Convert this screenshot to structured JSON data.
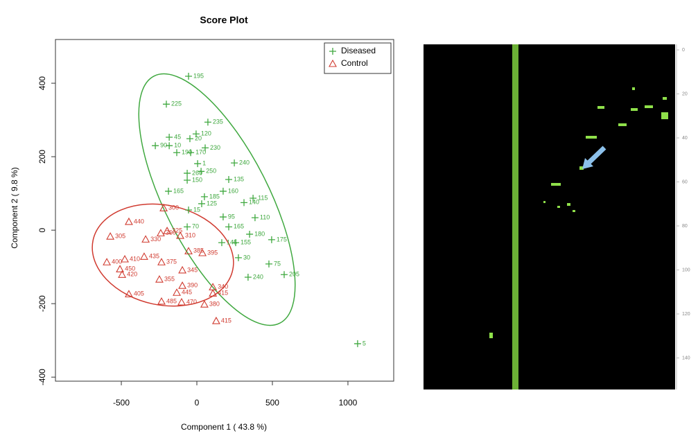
{
  "chart_data": {
    "type": "scatter",
    "title": "Score Plot",
    "xlabel": "Component 1 ( 43.8 %)",
    "ylabel": "Component 2 ( 9.8 %)",
    "xlim": [
      -936,
      1303
    ],
    "ylim": [
      -411,
      519
    ],
    "xticks": [
      -500,
      0,
      500,
      1000
    ],
    "yticks": [
      -400,
      -200,
      0,
      200,
      400
    ],
    "grid": false,
    "legend": "top-right",
    "series": [
      {
        "name": "Diseased",
        "color": "#3fa83f",
        "marker": "plus",
        "x": [
          -55,
          -202,
          73,
          -5,
          -183,
          -46,
          -275,
          -183,
          55,
          -133,
          -41,
          5,
          248,
          -64,
          28,
          -64,
          211,
          -188,
          174,
          312,
          32,
          50,
          -55,
          372,
          174,
          385,
          -64,
          211,
          349,
          495,
          165,
          257,
          275,
          477,
          578,
          339,
          1064
        ],
        "y": [
          419,
          343,
          294,
          262,
          253,
          249,
          230,
          230,
          224,
          211,
          211,
          181,
          183,
          155,
          160,
          136,
          138,
          106,
          106,
          75,
          72,
          91,
          55,
          87,
          36,
          34,
          9,
          9,
          -11,
          -26,
          -34,
          -34,
          -75,
          -92,
          -121,
          -128,
          -309
        ],
        "labels": [
          "195",
          "225",
          "235",
          "120",
          "45",
          "20",
          "90",
          "10",
          "230",
          "190",
          "170",
          "1",
          "240",
          "260",
          "250",
          "150",
          "135",
          "165",
          "160",
          "140",
          "125",
          "185",
          "15",
          "115",
          "95",
          "110",
          "70",
          "165",
          "180",
          "175",
          "145",
          "155",
          "30",
          "75",
          "205",
          "240",
          "5"
        ]
      },
      {
        "name": "Control",
        "color": "#d03a2f",
        "marker": "triangle",
        "x": [
          -450,
          -573,
          -339,
          -239,
          -197,
          -220,
          -110,
          -596,
          -349,
          -477,
          -509,
          -495,
          -234,
          -248,
          -96,
          -96,
          -55,
          37,
          -450,
          -133,
          -234,
          -101,
          50,
          106,
          106,
          128
        ],
        "y": [
          23,
          -17,
          -25,
          -8,
          -2,
          60,
          -15,
          -87,
          -72,
          -79,
          -106,
          -121,
          -87,
          -134,
          -109,
          -151,
          -57,
          -62,
          -174,
          -170,
          -194,
          -196,
          -202,
          -155,
          -172,
          -247
        ],
        "labels": [
          "440",
          "305",
          "330",
          "360",
          "325",
          "300",
          "310",
          "400",
          "435",
          "410",
          "450",
          "420",
          "375",
          "355",
          "345",
          "390",
          "385",
          "395",
          "405",
          "445",
          "485",
          "470",
          "380",
          "340",
          "415",
          "415"
        ]
      }
    ]
  },
  "image_panel": {
    "axis_labels": [
      "0",
      "20",
      "40",
      "60",
      "80",
      "100",
      "120",
      "140"
    ]
  }
}
